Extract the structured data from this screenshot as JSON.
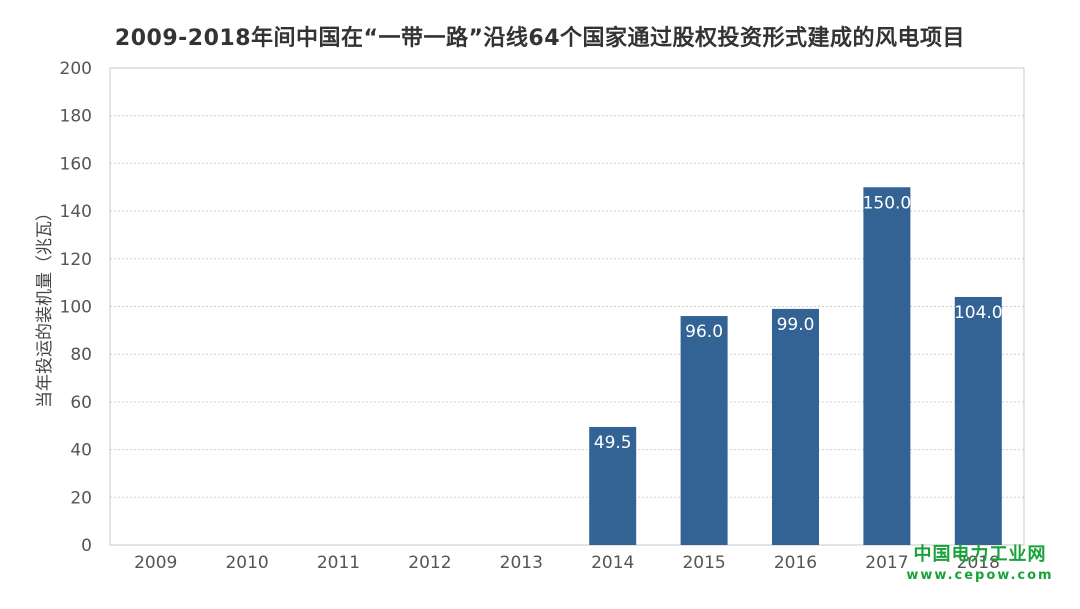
{
  "chart_data": {
    "type": "bar",
    "title": "2009-2018年间中国在“一带一路”沿线64个国家通过股权投资形式建成的风电项目",
    "ylabel": "当年投运的装机量（兆瓦）",
    "xlabel": "",
    "categories": [
      "2009",
      "2010",
      "2011",
      "2012",
      "2013",
      "2014",
      "2015",
      "2016",
      "2017",
      "2018"
    ],
    "values": [
      null,
      null,
      null,
      null,
      null,
      49.5,
      96.0,
      99.0,
      150.0,
      104.0
    ],
    "data_labels": [
      "",
      "",
      "",
      "",
      "",
      "49.5",
      "96.0",
      "99.0",
      "150.0",
      "104.0"
    ],
    "ylim": [
      0,
      200
    ],
    "yticks": [
      0,
      20,
      40,
      60,
      80,
      100,
      120,
      140,
      160,
      180,
      200
    ],
    "grid": true,
    "bar_color": "#336394"
  },
  "watermark": {
    "line1": "中国电力工业网",
    "line2": "www.cepow.com",
    "color": "#1aa23a"
  }
}
